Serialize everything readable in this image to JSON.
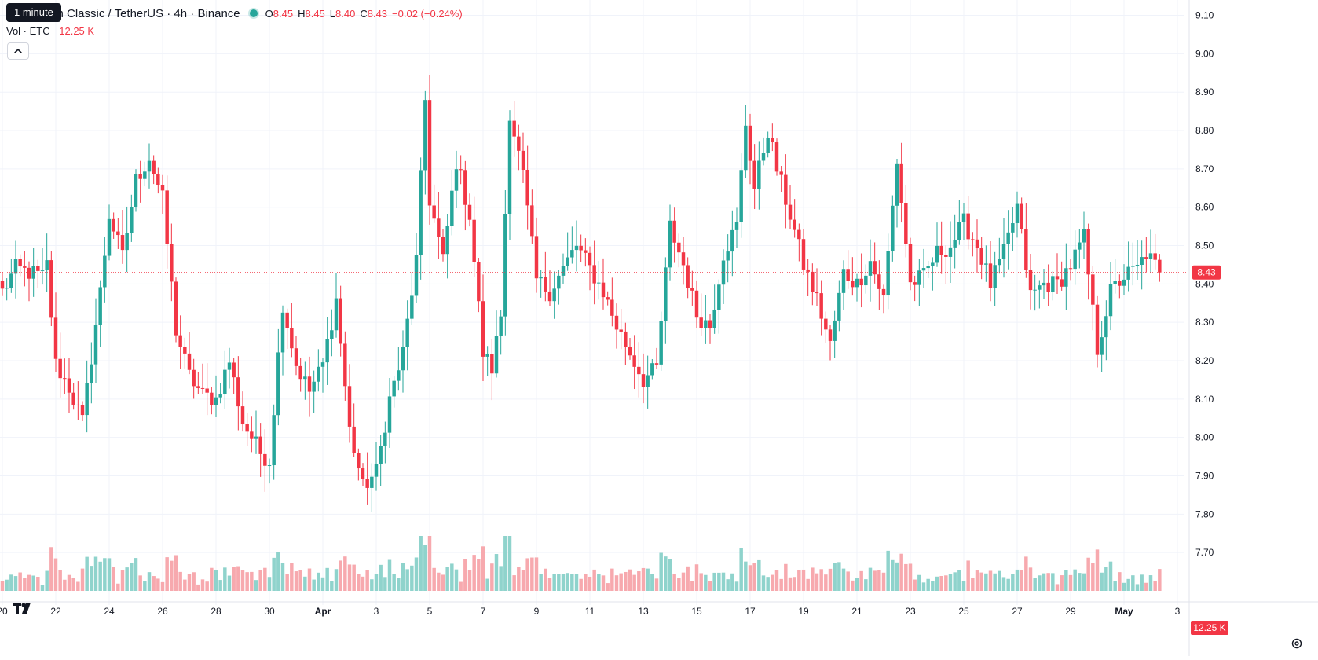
{
  "header": {
    "tooltip": "1 minute",
    "title": "um Classic / TetherUS · 4h · Binance",
    "ohlc": {
      "o_label": "O",
      "o": "8.45",
      "h_label": "H",
      "h": "8.45",
      "l_label": "L",
      "l": "8.40",
      "c_label": "C",
      "c": "8.43"
    },
    "change": "−0.02 (−0.24%)",
    "volume_label": "Vol · ETC",
    "volume_value": "12.25 K"
  },
  "colors": {
    "up": "#26a69a",
    "down": "#f23645",
    "up_volume": "#8fd3cc",
    "down_volume": "#f7a9ae",
    "grid": "#f0f3fa",
    "text": "#131722"
  },
  "icons": {
    "collapse": "chevron-up-icon",
    "logo": "tradingview-logo-icon",
    "settings": "gear-icon"
  },
  "chart_data": {
    "type": "candlestick",
    "title": "",
    "interval": "4h",
    "y_axis": {
      "min": 7.6,
      "max": 9.14,
      "ticks": [
        "9.10",
        "9.00",
        "8.90",
        "8.80",
        "8.70",
        "8.60",
        "8.50",
        "8.40",
        "8.30",
        "8.20",
        "8.10",
        "8.00",
        "7.90",
        "7.80",
        "7.70"
      ]
    },
    "x_axis": {
      "ticks": [
        "20",
        "22",
        "24",
        "26",
        "28",
        "30",
        "Apr",
        "3",
        "5",
        "7",
        "9",
        "11",
        "13",
        "15",
        "17",
        "19",
        "21",
        "23",
        "25",
        "27",
        "29",
        "May",
        "3"
      ]
    },
    "last_price": "8.43",
    "last_volume": "12.25 K",
    "close_anchors": [
      [
        "Mar 20 00:00",
        8.38
      ],
      [
        "Mar 20 12:00",
        8.44
      ],
      [
        "Mar 21 00:00",
        8.43
      ],
      [
        "Mar 21 12:00",
        8.42
      ],
      [
        "Mar 21 16:00",
        8.45
      ],
      [
        "Mar 22 00:00",
        8.19
      ],
      [
        "Mar 22 12:00",
        8.13
      ],
      [
        "Mar 23 00:00",
        8.04
      ],
      [
        "Mar 23 16:00",
        8.38
      ],
      [
        "Mar 24 00:00",
        8.58
      ],
      [
        "Mar 24 12:00",
        8.47
      ],
      [
        "Mar 25 00:00",
        8.67
      ],
      [
        "Mar 25 12:00",
        8.73
      ],
      [
        "Mar 26 00:00",
        8.62
      ],
      [
        "Mar 26 12:00",
        8.28
      ],
      [
        "Mar 27 00:00",
        8.16
      ],
      [
        "Mar 27 12:00",
        8.11
      ],
      [
        "Mar 28 00:00",
        8.1
      ],
      [
        "Mar 28 12:00",
        8.2
      ],
      [
        "Mar 29 00:00",
        8.04
      ],
      [
        "Mar 29 16:00",
        7.96
      ],
      [
        "Mar 30 00:00",
        7.94
      ],
      [
        "Mar 30 12:00",
        8.35
      ],
      [
        "Mar 31 00:00",
        8.19
      ],
      [
        "Mar 31 12:00",
        8.12
      ],
      [
        "Apr 1 00:00",
        8.19
      ],
      [
        "Apr 1 12:00",
        8.36
      ],
      [
        "Apr 2 00:00",
        8.02
      ],
      [
        "Apr 2 12:00",
        7.87
      ],
      [
        "Apr 3 00:00",
        7.91
      ],
      [
        "Apr 3 12:00",
        8.1
      ],
      [
        "Apr 4 00:00",
        8.22
      ],
      [
        "Apr 4 12:00",
        8.46
      ],
      [
        "Apr 4 20:00",
        8.88
      ],
      [
        "Apr 5 00:00",
        8.62
      ],
      [
        "Apr 5 12:00",
        8.46
      ],
      [
        "Apr 6 00:00",
        8.72
      ],
      [
        "Apr 6 12:00",
        8.58
      ],
      [
        "Apr 7 00:00",
        8.22
      ],
      [
        "Apr 7 08:00",
        8.18
      ],
      [
        "Apr 7 16:00",
        8.32
      ],
      [
        "Apr 8 00:00",
        8.85
      ],
      [
        "Apr 8 12:00",
        8.68
      ],
      [
        "Apr 9 00:00",
        8.41
      ],
      [
        "Apr 9 12:00",
        8.38
      ],
      [
        "Apr 10 00:00",
        8.44
      ],
      [
        "Apr 10 12:00",
        8.5
      ],
      [
        "Apr 11 00:00",
        8.44
      ],
      [
        "Apr 11 12:00",
        8.38
      ],
      [
        "Apr 12 00:00",
        8.29
      ],
      [
        "Apr 12 12:00",
        8.22
      ],
      [
        "Apr 13 00:00",
        8.15
      ],
      [
        "Apr 13 12:00",
        8.18
      ],
      [
        "Apr 14 00:00",
        8.55
      ],
      [
        "Apr 14 12:00",
        8.45
      ],
      [
        "Apr 15 00:00",
        8.32
      ],
      [
        "Apr 15 12:00",
        8.29
      ],
      [
        "Apr 16 00:00",
        8.48
      ],
      [
        "Apr 16 12:00",
        8.55
      ],
      [
        "Apr 16 20:00",
        8.82
      ],
      [
        "Apr 17 04:00",
        8.65
      ],
      [
        "Apr 17 16:00",
        8.8
      ],
      [
        "Apr 18 00:00",
        8.7
      ],
      [
        "Apr 18 12:00",
        8.58
      ],
      [
        "Apr 19 00:00",
        8.45
      ],
      [
        "Apr 19 12:00",
        8.36
      ],
      [
        "Apr 20 00:00",
        8.24
      ],
      [
        "Apr 20 12:00",
        8.43
      ],
      [
        "Apr 21 00:00",
        8.4
      ],
      [
        "Apr 21 12:00",
        8.46
      ],
      [
        "Apr 22 00:00",
        8.36
      ],
      [
        "Apr 22 12:00",
        8.72
      ],
      [
        "Apr 23 00:00",
        8.4
      ],
      [
        "Apr 23 12:00",
        8.42
      ],
      [
        "Apr 24 00:00",
        8.48
      ],
      [
        "Apr 24 12:00",
        8.5
      ],
      [
        "Apr 25 00:00",
        8.56
      ],
      [
        "Apr 25 12:00",
        8.5
      ],
      [
        "Apr 26 00:00",
        8.4
      ],
      [
        "Apr 26 12:00",
        8.48
      ],
      [
        "Apr 27 00:00",
        8.6
      ],
      [
        "Apr 27 12:00",
        8.37
      ],
      [
        "Apr 28 00:00",
        8.4
      ],
      [
        "Apr 28 12:00",
        8.4
      ],
      [
        "Apr 29 00:00",
        8.45
      ],
      [
        "Apr 29 12:00",
        8.52
      ],
      [
        "Apr 30 00:00",
        8.23
      ],
      [
        "Apr 30 12:00",
        8.38
      ],
      [
        "May 1 00:00",
        8.42
      ],
      [
        "May 1 12:00",
        8.44
      ],
      [
        "May 1 20:00",
        8.48
      ],
      [
        "May 2 08:00",
        8.43
      ]
    ]
  }
}
